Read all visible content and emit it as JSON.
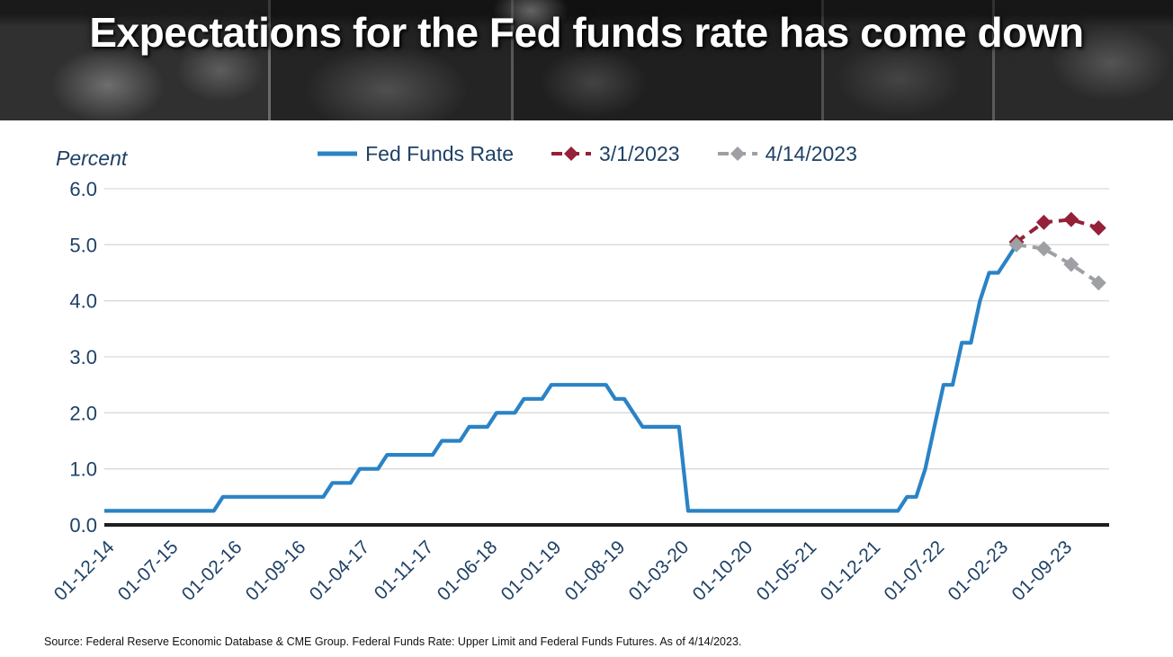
{
  "header": {
    "title": "Expectations for the Fed funds rate has come down"
  },
  "source_note": "Source: Federal Reserve Economic Database & CME Group. Federal Funds Rate: Upper Limit and Federal Funds Futures. As of 4/14/2023.",
  "chart_data": {
    "type": "line",
    "title": "Expectations for the Fed funds rate has come down",
    "ylabel": "Percent",
    "ylim": [
      0,
      6
    ],
    "ytick_labels": [
      "0.0",
      "1.0",
      "2.0",
      "3.0",
      "4.0",
      "5.0",
      "6.0"
    ],
    "grid": true,
    "legend_position": "top-center",
    "label_color": "#1F4166",
    "grid_color": "#D9D9D9",
    "axis_color": "#1F1F1F",
    "x_tick_labels": [
      "01-12-14",
      "01-07-15",
      "01-02-16",
      "01-09-16",
      "01-04-17",
      "01-11-17",
      "01-06-18",
      "01-01-19",
      "01-08-19",
      "01-03-20",
      "01-10-20",
      "01-05-21",
      "01-12-21",
      "01-07-22",
      "01-02-23",
      "01-09-23"
    ],
    "x_tick_month_index": [
      0,
      7,
      14,
      21,
      28,
      35,
      42,
      49,
      56,
      63,
      70,
      77,
      84,
      91,
      98,
      105
    ],
    "series": [
      {
        "name": "Fed Funds Rate",
        "color": "#2A83C5",
        "style": "solid",
        "start_month_index": 0,
        "values": [
          0.25,
          0.25,
          0.25,
          0.25,
          0.25,
          0.25,
          0.25,
          0.25,
          0.25,
          0.25,
          0.25,
          0.25,
          0.25,
          0.5,
          0.5,
          0.5,
          0.5,
          0.5,
          0.5,
          0.5,
          0.5,
          0.5,
          0.5,
          0.5,
          0.5,
          0.75,
          0.75,
          0.75,
          1.0,
          1.0,
          1.0,
          1.25,
          1.25,
          1.25,
          1.25,
          1.25,
          1.25,
          1.5,
          1.5,
          1.5,
          1.75,
          1.75,
          1.75,
          2.0,
          2.0,
          2.0,
          2.25,
          2.25,
          2.25,
          2.5,
          2.5,
          2.5,
          2.5,
          2.5,
          2.5,
          2.5,
          2.25,
          2.25,
          2.0,
          1.75,
          1.75,
          1.75,
          1.75,
          1.75,
          0.25,
          0.25,
          0.25,
          0.25,
          0.25,
          0.25,
          0.25,
          0.25,
          0.25,
          0.25,
          0.25,
          0.25,
          0.25,
          0.25,
          0.25,
          0.25,
          0.25,
          0.25,
          0.25,
          0.25,
          0.25,
          0.25,
          0.25,
          0.25,
          0.5,
          0.5,
          1.0,
          1.75,
          2.5,
          2.5,
          3.25,
          3.25,
          4.0,
          4.5,
          4.5,
          4.75,
          5.0
        ]
      },
      {
        "name": "3/1/2023",
        "color": "#942138",
        "style": "dashed_diamond",
        "month_index": [
          100,
          103,
          106,
          109
        ],
        "values": [
          5.05,
          5.4,
          5.45,
          5.3
        ]
      },
      {
        "name": "4/14/2023",
        "color": "#9EA0A3",
        "style": "dashed_diamond",
        "month_index": [
          100,
          103,
          106,
          109
        ],
        "values": [
          5.0,
          4.93,
          4.65,
          4.32
        ]
      }
    ]
  }
}
